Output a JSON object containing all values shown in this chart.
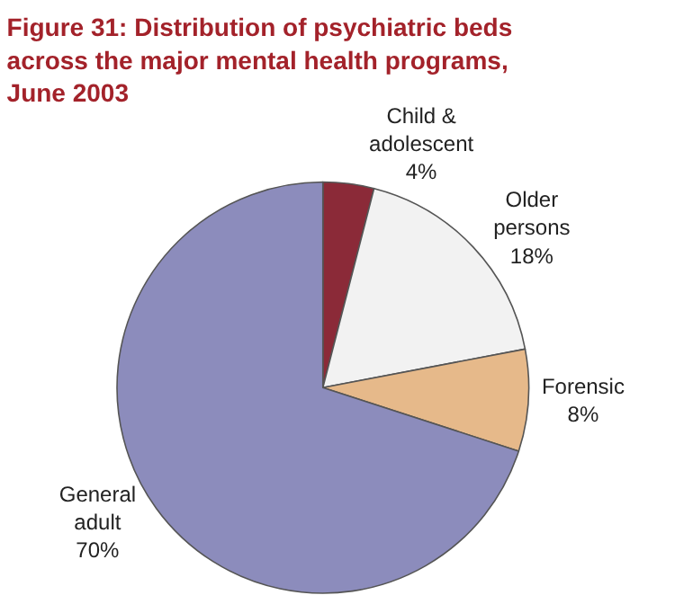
{
  "chart_data": {
    "type": "pie",
    "title": "Figure 31: Distribution of psychiatric beds across the major mental health programs, June 2003",
    "categories": [
      "Child & adolescent",
      "Older persons",
      "Forensic",
      "General adult"
    ],
    "values": [
      4,
      18,
      8,
      70
    ],
    "value_labels": [
      "4%",
      "18%",
      "8%",
      "70%"
    ],
    "colors": [
      "#8b2a38",
      "#f2f2f2",
      "#e6b98a",
      "#8c8cbc"
    ],
    "legend": false
  }
}
